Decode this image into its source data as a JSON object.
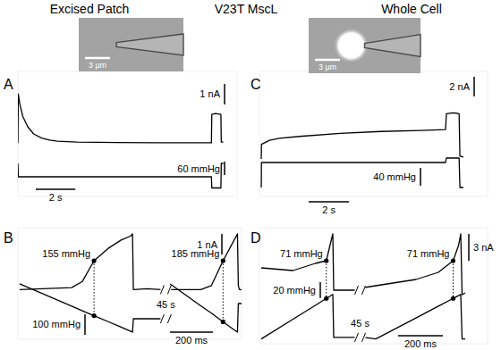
{
  "header": [
    "Excised Patch",
    "V23T MscL",
    "Whole Cell"
  ],
  "chart_data": [
    {
      "type": "line",
      "title": "A",
      "x": [
        0,
        0.02,
        0.1,
        0.25,
        0.5,
        0.8,
        1.2,
        1.6,
        2,
        3,
        5,
        7,
        9.8,
        9.82,
        10,
        10.28,
        10.3,
        10.4
      ],
      "series": [
        {
          "color": "#000000",
          "values": [
            0,
            2.4,
            1.9,
            1.3,
            0.8,
            0.45,
            0.25,
            0.15,
            0.1,
            0.05,
            0.03,
            0.02,
            0.02,
            1.4,
            1.45,
            1.4,
            0.05,
            0.05
          ]
        },
        {
          "color": "#000000",
          "axis": "y2",
          "values": [
            0,
            60,
            60,
            60,
            60,
            60,
            60,
            60,
            60,
            60,
            60,
            60,
            60,
            110,
            110,
            110,
            0,
            0
          ]
        }
      ],
      "xlim": [
        0,
        11.1
      ],
      "ylim": [
        -2.6,
        3.5
      ],
      "y2lim": [
        148,
        -412
      ],
      "tick_labels": false,
      "scale_bars": [
        {
          "axis": "y",
          "value": 1,
          "label": "1 nA"
        },
        {
          "axis": "y2",
          "value": 60,
          "label": "60 mmHg"
        },
        {
          "axis": "x",
          "value": 2,
          "label": "2 s"
        }
      ],
      "inset": {
        "scale_bar": "3 µm"
      }
    },
    {
      "type": "line",
      "title": "B",
      "x": [
        8,
        250,
        300,
        354,
        420,
        480,
        525,
        533,
        537,
        600,
        667,
        688,
        708,
        850,
        900,
        954,
        990,
        1021,
        1025,
        1030,
        1040
      ],
      "series": [
        {
          "color": "#000000",
          "values": [
            0,
            0.1,
            0.4,
            1.4,
            2.0,
            2.4,
            2.6,
            2.7,
            0,
            0.05,
            0,
            null,
            0,
            0,
            0.2,
            1.4,
            2.1,
            2.7,
            0.2,
            0,
            0
          ]
        },
        {
          "color": "#000000",
          "axis": "y2",
          "values": [
            0,
            108,
            131,
            155,
            184,
            211,
            231,
            235,
            170,
            170,
            170,
            null,
            0,
            107,
            143,
            185,
            212,
            235,
            96,
            96,
            96
          ]
        }
      ],
      "xlim": [
        0,
        1040
      ],
      "ylim": [
        -2.4,
        3.0
      ],
      "y2lim": [
        270,
        -274
      ],
      "tick_labels": false,
      "scale_bars": [
        {
          "axis": "y",
          "value": 1,
          "label": "1 nA"
        },
        {
          "axis": "y2",
          "value": 100,
          "label": "100 mmHg"
        },
        {
          "axis": "x",
          "value": 200,
          "label": "200 ms"
        }
      ],
      "annotations": [
        {
          "label": "155 mmHg",
          "x": 354,
          "value": 155
        },
        {
          "label": "185 mmHg",
          "x": 954,
          "value": 185
        },
        {
          "label": "45 s",
          "x": 688
        }
      ]
    },
    {
      "type": "line",
      "title": "C",
      "x": [
        0.09,
        0.1,
        0.5,
        1,
        2,
        4,
        6,
        8,
        9.22,
        9.26,
        9.6,
        9.89,
        9.93,
        10.1
      ],
      "series": [
        {
          "color": "#000000",
          "values": [
            0,
            1.5,
            1.9,
            2.1,
            2.3,
            2.6,
            2.8,
            2.9,
            3.0,
            4.6,
            4.7,
            4.6,
            0.3,
            0.2
          ]
        },
        {
          "color": "#000000",
          "axis": "y2",
          "values": [
            0,
            56,
            56,
            56,
            56,
            56,
            56,
            56,
            56,
            66,
            66,
            66,
            0,
            0
          ]
        }
      ],
      "xlim": [
        0,
        11.3
      ],
      "ylim": [
        -3.8,
        8.9
      ],
      "y2lim": [
        -20,
        260
      ],
      "tick_labels": false,
      "scale_bars": [
        {
          "axis": "y",
          "value": 2,
          "label": "2 nA"
        },
        {
          "axis": "y2",
          "value": 40,
          "label": "40 mmHg"
        },
        {
          "axis": "x",
          "value": 2,
          "label": "2 s"
        }
      ],
      "inset": {
        "scale_bar": "3 µm"
      }
    },
    {
      "type": "line",
      "title": "D",
      "x": [
        8,
        150,
        250,
        299,
        320,
        328,
        332,
        428,
        450,
        470,
        520,
        700,
        800,
        866,
        890,
        900,
        906,
        920
      ],
      "series": [
        {
          "color": "#000000",
          "values": [
            2.5,
            2.2,
            3.0,
            3.3,
            5.5,
            6.3,
            0,
            0,
            null,
            0.3,
            0.5,
            1.2,
            2.0,
            3.3,
            5.0,
            6.3,
            -0.5,
            -0.3
          ]
        },
        {
          "color": "#000000",
          "axis": "y2",
          "values": [
            20,
            44.9,
            62.3,
            71,
            74.6,
            76,
            22,
            22,
            null,
            22,
            20,
            46.5,
            61.3,
            71,
            74.5,
            76,
            20,
            20
          ]
        }
      ],
      "xlim": [
        0,
        1020
      ],
      "ylim": [
        -6,
        7
      ],
      "y2lim": [
        14,
        160
      ],
      "tick_labels": false,
      "scale_bars": [
        {
          "axis": "y",
          "value": 3,
          "label": "3 nA"
        },
        {
          "axis": "y2",
          "value": 20,
          "label": "20 mmHg"
        },
        {
          "axis": "x",
          "value": 200,
          "label": "200 ms"
        }
      ],
      "annotations": [
        {
          "label": "71 mmHg",
          "x": 299,
          "value": 71
        },
        {
          "label": "71 mmHg",
          "x": 866,
          "value": 71
        },
        {
          "label": "45 s",
          "x": 450
        }
      ]
    }
  ]
}
